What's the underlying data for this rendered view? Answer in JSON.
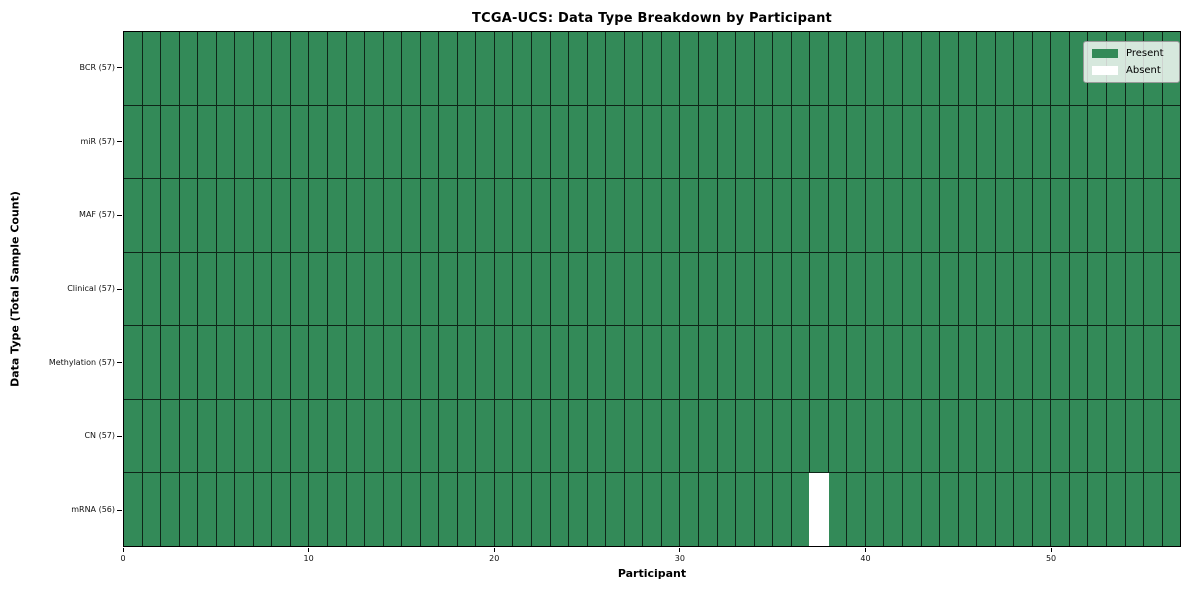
{
  "chart_data": {
    "type": "heatmap",
    "title": "TCGA-UCS: Data Type Breakdown by Participant",
    "xlabel": "Participant",
    "ylabel": "Data Type (Total Sample Count)",
    "n_participants": 57,
    "x_range": [
      0,
      57
    ],
    "x_ticks": [
      0,
      10,
      20,
      30,
      40,
      50
    ],
    "grid": true,
    "rows": [
      {
        "label": "BCR (57)",
        "data_type": "BCR",
        "present_count": 57,
        "absent_participants": []
      },
      {
        "label": "miR (57)",
        "data_type": "miR",
        "present_count": 57,
        "absent_participants": []
      },
      {
        "label": "MAF (57)",
        "data_type": "MAF",
        "present_count": 57,
        "absent_participants": []
      },
      {
        "label": "Clinical (57)",
        "data_type": "Clinical",
        "present_count": 57,
        "absent_participants": []
      },
      {
        "label": "Methylation (57)",
        "data_type": "Methylation",
        "present_count": 57,
        "absent_participants": []
      },
      {
        "label": "CN (57)",
        "data_type": "CN",
        "present_count": 57,
        "absent_participants": []
      },
      {
        "label": "mRNA (56)",
        "data_type": "mRNA",
        "present_count": 56,
        "absent_participants": [
          37
        ]
      }
    ],
    "legend": {
      "position": "upper right",
      "entries": [
        {
          "label": "Present",
          "color": "#338a58"
        },
        {
          "label": "Absent",
          "color": "#ffffff"
        }
      ]
    },
    "colors": {
      "present": "#338a58",
      "absent": "#ffffff"
    }
  }
}
